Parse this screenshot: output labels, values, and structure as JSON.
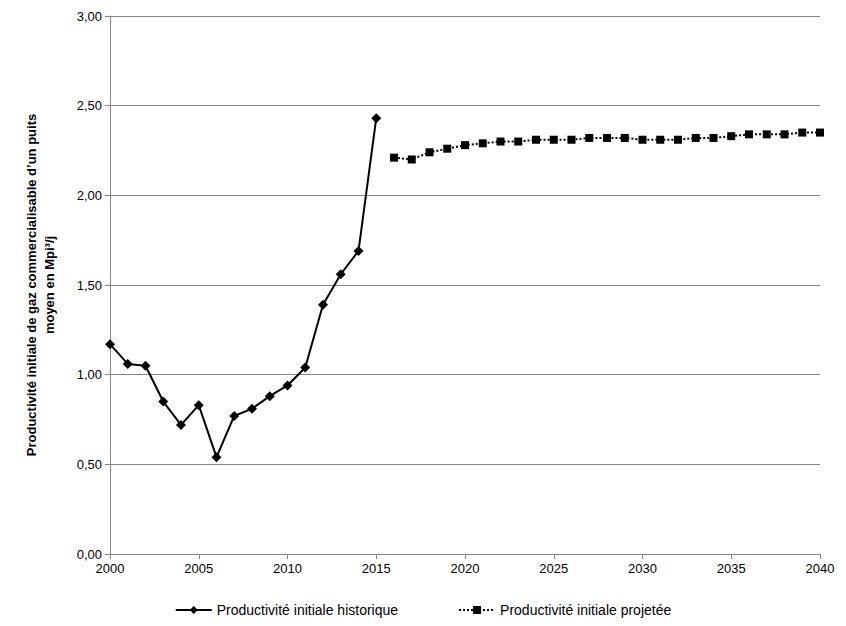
{
  "chart_data": {
    "type": "line",
    "y_label": "Productivité initiale de gaz commercialisable d’un puits\nmoyen en Mpi³/j",
    "x": [
      2000,
      2001,
      2002,
      2003,
      2004,
      2005,
      2006,
      2007,
      2008,
      2009,
      2010,
      2011,
      2012,
      2013,
      2014,
      2015,
      2016,
      2017,
      2018,
      2019,
      2020,
      2021,
      2022,
      2023,
      2024,
      2025,
      2026,
      2027,
      2028,
      2029,
      2030,
      2031,
      2032,
      2033,
      2034,
      2035,
      2036,
      2037,
      2038,
      2039,
      2040
    ],
    "series": [
      {
        "name": "Productivité initiale historique",
        "color": "#000000",
        "marker": "diamond",
        "line_style": "solid",
        "values": [
          1.17,
          1.06,
          1.05,
          0.85,
          0.72,
          0.83,
          0.54,
          0.77,
          0.81,
          0.88,
          0.94,
          1.04,
          1.39,
          1.56,
          1.69,
          2.43,
          null,
          null,
          null,
          null,
          null,
          null,
          null,
          null,
          null,
          null,
          null,
          null,
          null,
          null,
          null,
          null,
          null,
          null,
          null,
          null,
          null,
          null,
          null,
          null,
          null
        ]
      },
      {
        "name": "Productivité initiale projetée",
        "color": "#000000",
        "marker": "square",
        "line_style": "dotted",
        "values": [
          null,
          null,
          null,
          null,
          null,
          null,
          null,
          null,
          null,
          null,
          null,
          null,
          null,
          null,
          null,
          null,
          2.21,
          2.2,
          2.24,
          2.26,
          2.28,
          2.29,
          2.3,
          2.3,
          2.31,
          2.31,
          2.31,
          2.32,
          2.32,
          2.32,
          2.31,
          2.31,
          2.31,
          2.32,
          2.32,
          2.33,
          2.34,
          2.34,
          2.34,
          2.35,
          2.35
        ]
      }
    ],
    "xlim": [
      2000,
      2040
    ],
    "xticks": [
      2000,
      2005,
      2010,
      2015,
      2020,
      2025,
      2030,
      2035,
      2040
    ],
    "ylim": [
      0,
      3
    ],
    "yticks": [
      {
        "value": 0,
        "label": "0,00"
      },
      {
        "value": 0.5,
        "label": "0,50"
      },
      {
        "value": 1,
        "label": "1,00"
      },
      {
        "value": 1.5,
        "label": "1,50"
      },
      {
        "value": 2,
        "label": "2,00"
      },
      {
        "value": 2.5,
        "label": "2,50"
      },
      {
        "value": 3,
        "label": "3,00"
      }
    ],
    "grid": true,
    "legend": "bottom"
  }
}
